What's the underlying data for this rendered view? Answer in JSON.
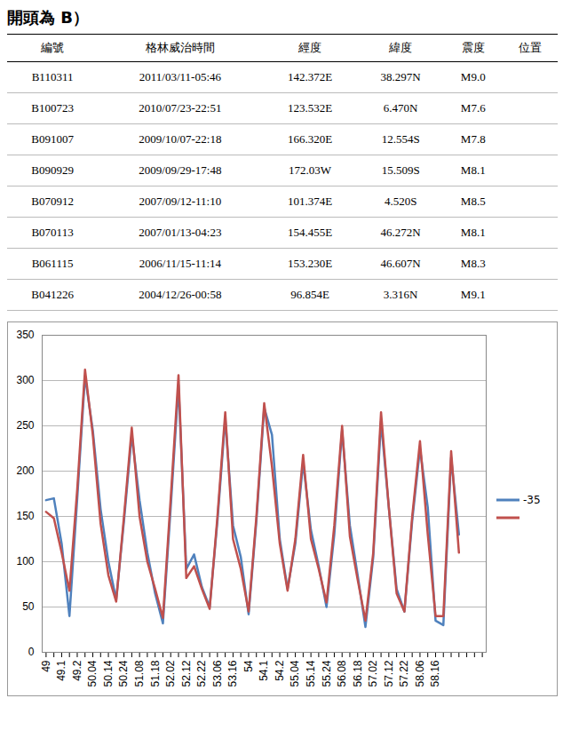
{
  "header_text": "開頭為 B）",
  "table": {
    "columns": [
      "編號",
      "格林威治時間",
      "經度",
      "緯度",
      "震度",
      "位置"
    ],
    "rows": [
      [
        "B110311",
        "2011/03/11-05:46",
        "142.372E",
        "38.297N",
        "M9.0",
        null
      ],
      [
        "B100723",
        "2010/07/23-22:51",
        "123.532E",
        "6.470N",
        "M7.6",
        null
      ],
      [
        "B091007",
        "2009/10/07-22:18",
        "166.320E",
        "12.554S",
        "M7.8",
        null
      ],
      [
        "B090929",
        "2009/09/29-17:48",
        "172.03W",
        "15.509S",
        "M8.1",
        null
      ],
      [
        "B070912",
        "2007/09/12-11:10",
        "101.374E",
        "4.520S",
        "M8.5",
        null
      ],
      [
        "B070113",
        "2007/01/13-04:23",
        "154.455E",
        "46.272N",
        "M8.1",
        null
      ],
      [
        "B061115",
        "2006/11/15-11:14",
        "153.230E",
        "46.607N",
        "M8.3",
        null
      ],
      [
        "B041226",
        "2004/12/26-00:58",
        "96.854E",
        "3.316N",
        "M9.1",
        null
      ]
    ]
  },
  "chart_data": {
    "type": "line",
    "categories": [
      "49",
      null,
      "49.1",
      null,
      "49.2",
      null,
      "50.04",
      null,
      "50.14",
      null,
      "50.24",
      null,
      "51.08",
      null,
      "51.18",
      null,
      "52.02",
      null,
      "52.12",
      null,
      "52.22",
      null,
      "53.06",
      null,
      "53.16",
      null,
      "54",
      null,
      "54.1",
      null,
      "54.2",
      null,
      "55.04",
      null,
      "55.14",
      null,
      "55.24",
      null,
      "56.08",
      null,
      "56.18",
      null,
      "57.02",
      null,
      "57.12",
      null,
      "57.22",
      null,
      "58.06",
      null,
      "58.16",
      null,
      null,
      null,
      null,
      null,
      null
    ],
    "series": [
      {
        "name": "-35",
        "color": "#4f81bd",
        "values": [
          168,
          170,
          120,
          40,
          170,
          305,
          245,
          158,
          100,
          58,
          145,
          240,
          168,
          110,
          65,
          32,
          160,
          295,
          92,
          108,
          72,
          50,
          145,
          258,
          140,
          105,
          42,
          145,
          270,
          240,
          125,
          70,
          120,
          210,
          135,
          95,
          50,
          130,
          245,
          140,
          85,
          28,
          105,
          255,
          160,
          70,
          45,
          145,
          225,
          160,
          35,
          30,
          215,
          130,
          null,
          null,
          null
        ]
      },
      {
        "name": null,
        "color": "#c0504d",
        "values": [
          155,
          148,
          110,
          68,
          180,
          312,
          240,
          142,
          85,
          56,
          150,
          248,
          150,
          100,
          70,
          38,
          170,
          306,
          82,
          95,
          70,
          48,
          150,
          265,
          125,
          92,
          45,
          150,
          275,
          205,
          120,
          68,
          125,
          218,
          125,
          92,
          55,
          140,
          250,
          128,
          80,
          35,
          110,
          265,
          160,
          65,
          45,
          150,
          233,
          130,
          40,
          40,
          222,
          110,
          null,
          null,
          null
        ]
      }
    ],
    "ylim": [
      0,
      350
    ],
    "yticks": [
      0,
      50,
      100,
      150,
      200,
      250,
      300,
      350
    ],
    "grid": true,
    "legend": "right"
  }
}
